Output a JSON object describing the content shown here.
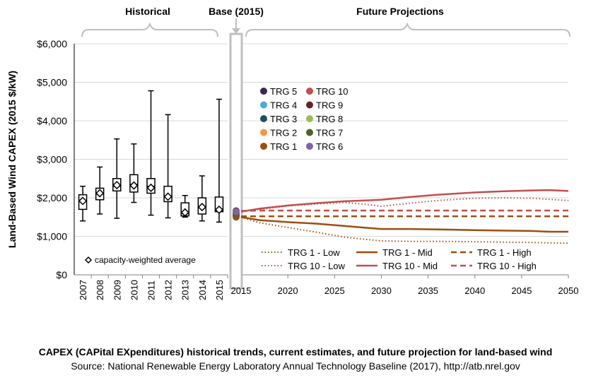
{
  "chart_data": {
    "type": "box_and_line",
    "ylabel": "Land-Based Wind CAPEX (2015 $/kW)",
    "ylim": [
      0,
      6000
    ],
    "yticks": [
      0,
      1000,
      2000,
      3000,
      4000,
      5000,
      6000
    ],
    "ytick_labels": [
      "$0",
      "$1,000",
      "$2,000",
      "$3,000",
      "$4,000",
      "$5,000",
      "$6,000"
    ],
    "grid": "horizontal",
    "sections": {
      "historical": "Historical",
      "base": "Base (2015)",
      "future": "Future Projections"
    },
    "historical": {
      "years": [
        "2007",
        "2008",
        "2009",
        "2010",
        "2011",
        "2012",
        "2013",
        "2014",
        "2015"
      ],
      "boxes": [
        {
          "min": 1400,
          "q1": 1700,
          "median": 1900,
          "q3": 2080,
          "max": 2300,
          "avg": 1920
        },
        {
          "min": 1580,
          "q1": 1950,
          "median": 2100,
          "q3": 2250,
          "max": 2800,
          "avg": 2120
        },
        {
          "min": 1470,
          "q1": 2180,
          "median": 2300,
          "q3": 2500,
          "max": 3530,
          "avg": 2330
        },
        {
          "min": 1880,
          "q1": 2150,
          "median": 2350,
          "q3": 2600,
          "max": 3400,
          "avg": 2320
        },
        {
          "min": 1550,
          "q1": 2120,
          "median": 2300,
          "q3": 2500,
          "max": 4780,
          "avg": 2260
        },
        {
          "min": 1480,
          "q1": 1900,
          "median": 2050,
          "q3": 2300,
          "max": 4160,
          "avg": 2030
        },
        {
          "min": 1500,
          "q1": 1530,
          "median": 1600,
          "q3": 1870,
          "max": 2060,
          "avg": 1620
        },
        {
          "min": 1400,
          "q1": 1580,
          "median": 1750,
          "q3": 2000,
          "max": 2570,
          "avg": 1760
        },
        {
          "min": 1370,
          "q1": 1640,
          "median": 1700,
          "q3": 2020,
          "max": 4560,
          "avg": 1690
        }
      ],
      "avg_legend": "capacity-weighted average"
    },
    "base_points": [
      {
        "name": "TRG 5",
        "value": 1540,
        "color": "#3a2b4d"
      },
      {
        "name": "TRG 4",
        "value": 1600,
        "color": "#4aaed1"
      },
      {
        "name": "TRG 3",
        "value": 1580,
        "color": "#1f5060"
      },
      {
        "name": "TRG 2",
        "value": 1620,
        "color": "#f79646"
      },
      {
        "name": "TRG 1",
        "value": 1500,
        "color": "#9c4f0e"
      },
      {
        "name": "TRG 10",
        "value": 1650,
        "color": "#c0504d"
      },
      {
        "name": "TRG 9",
        "value": 1660,
        "color": "#632523"
      },
      {
        "name": "TRG 8",
        "value": 1600,
        "color": "#9bbb59"
      },
      {
        "name": "TRG 7",
        "value": 1590,
        "color": "#4f6228"
      },
      {
        "name": "TRG 6",
        "value": 1640,
        "color": "#8064a2"
      }
    ],
    "base_year": "2015",
    "future": {
      "x": [
        2015,
        2017,
        2020,
        2023,
        2026,
        2028,
        2030,
        2033,
        2036,
        2040,
        2043,
        2046,
        2048,
        2050
      ],
      "xticks": [
        "2020",
        "2025",
        "2030",
        "2035",
        "2040",
        "2045",
        "2050"
      ],
      "series": [
        {
          "name": "TRG 1 - Low",
          "color": "#9c4f0e",
          "dash": "dot",
          "values": [
            1500,
            1350,
            1230,
            1110,
            980,
            930,
            880,
            870,
            870,
            860,
            850,
            840,
            830,
            820
          ]
        },
        {
          "name": "TRG 1 - Mid",
          "color": "#9c4f0e",
          "dash": "solid",
          "values": [
            1500,
            1420,
            1370,
            1330,
            1270,
            1230,
            1190,
            1190,
            1180,
            1160,
            1150,
            1140,
            1120,
            1120
          ]
        },
        {
          "name": "TRG 1 - High",
          "color": "#9c4f0e",
          "dash": "dash",
          "values": [
            1520,
            1520,
            1520,
            1520,
            1520,
            1520,
            1520,
            1520,
            1520,
            1520,
            1520,
            1520,
            1520,
            1520
          ]
        },
        {
          "name": "TRG 10 - Low",
          "color": "#c0504d",
          "dash": "dot",
          "values": [
            1640,
            1700,
            1790,
            1840,
            1880,
            1840,
            1780,
            1860,
            1930,
            1990,
            2000,
            1990,
            1960,
            1930
          ]
        },
        {
          "name": "TRG 10 - Mid",
          "color": "#c0504d",
          "dash": "solid",
          "values": [
            1640,
            1720,
            1800,
            1860,
            1910,
            1930,
            1950,
            2020,
            2080,
            2140,
            2170,
            2190,
            2200,
            2180
          ]
        },
        {
          "name": "TRG 10 - High",
          "color": "#c0504d",
          "dash": "dash",
          "values": [
            1660,
            1670,
            1670,
            1670,
            1670,
            1670,
            1670,
            1670,
            1670,
            1670,
            1670,
            1670,
            1670,
            1670
          ]
        }
      ]
    }
  },
  "caption": {
    "line1": "CAPEX (CAPital EXpenditures) historical trends, current estimates, and future projection for land-based wind",
    "line2": "Source: National Renewable Energy Laboratory Annual Technology Baseline (2017),  http://atb.nrel.gov"
  }
}
